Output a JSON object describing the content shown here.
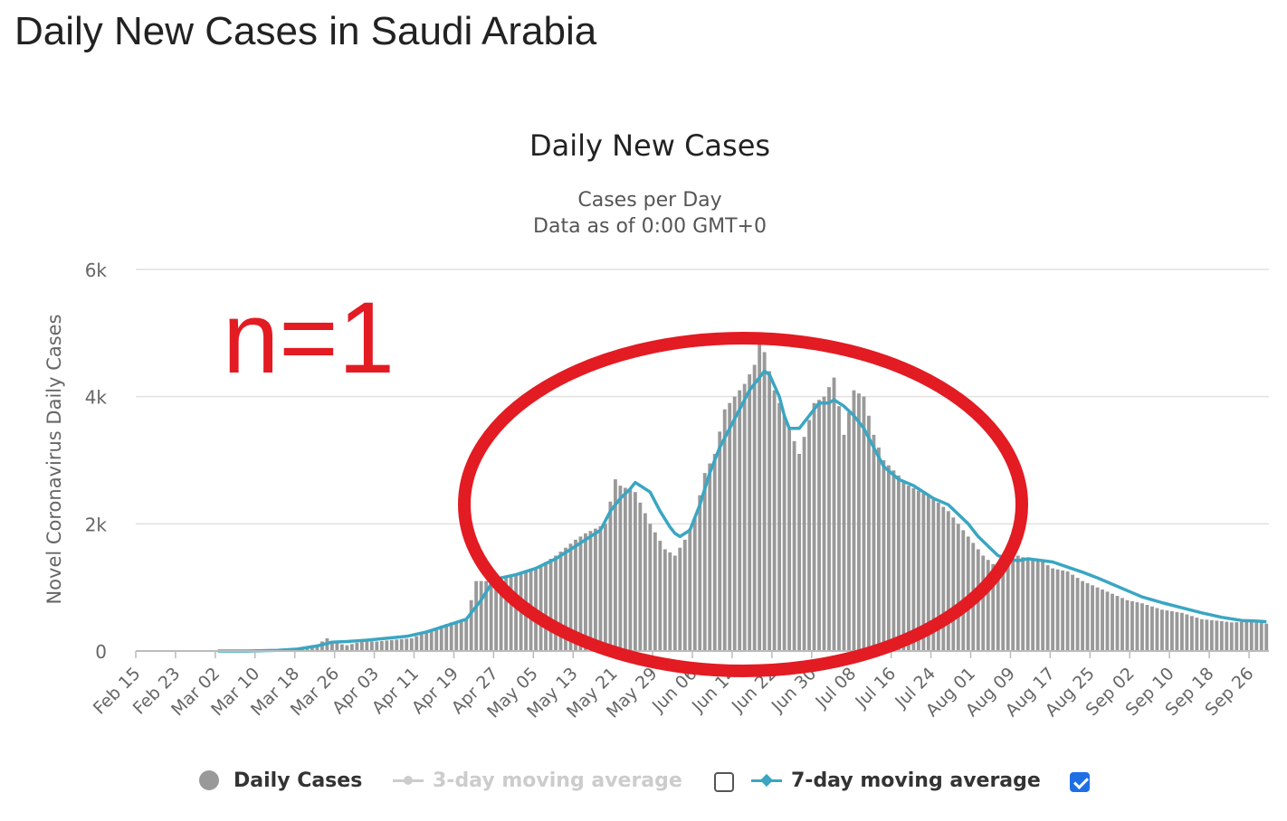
{
  "page": {
    "title": "Daily New Cases in Saudi Arabia"
  },
  "annotation": {
    "text": "n=1",
    "color": "#e31b23"
  },
  "chart_data": {
    "type": "bar",
    "title": "Daily New Cases",
    "subtitle_line1": "Cases per Day",
    "subtitle_line2": "Data as of 0:00 GMT+0",
    "ylabel": "Novel Coronavirus Daily Cases",
    "xlabel": "",
    "ylim": [
      0,
      6000
    ],
    "yticks": [
      0,
      2000,
      4000,
      6000
    ],
    "ytick_labels": [
      "0",
      "2k",
      "4k",
      "6k"
    ],
    "grid": true,
    "start_date": "Feb 15",
    "xtick_labels": [
      "Feb 15",
      "Feb 23",
      "Mar 02",
      "Mar 10",
      "Mar 18",
      "Mar 26",
      "Apr 03",
      "Apr 11",
      "Apr 19",
      "Apr 27",
      "May 05",
      "May 13",
      "May 21",
      "May 29",
      "Jun 06",
      "Jun 14",
      "Jun 22",
      "Jun 30",
      "Jul 08",
      "Jul 16",
      "Jul 24",
      "Aug 01",
      "Aug 09",
      "Aug 17",
      "Aug 25",
      "Sep 02",
      "Sep 10",
      "Sep 18",
      "Sep 26"
    ],
    "series": [
      {
        "name": "Daily Cases",
        "color": "#999999",
        "anchors": [
          [
            0,
            0
          ],
          [
            16,
            0
          ],
          [
            25,
            5
          ],
          [
            30,
            30
          ],
          [
            33,
            60
          ],
          [
            36,
            100
          ],
          [
            38,
            200
          ],
          [
            40,
            120
          ],
          [
            42,
            90
          ],
          [
            45,
            150
          ],
          [
            48,
            150
          ],
          [
            52,
            180
          ],
          [
            55,
            200
          ],
          [
            58,
            300
          ],
          [
            61,
            400
          ],
          [
            63,
            450
          ],
          [
            66,
            500
          ],
          [
            67,
            800
          ],
          [
            68,
            1100
          ],
          [
            71,
            1100
          ],
          [
            72,
            1150
          ],
          [
            75,
            1200
          ],
          [
            78,
            1250
          ],
          [
            80,
            1300
          ],
          [
            84,
            1500
          ],
          [
            88,
            1750
          ],
          [
            90,
            1850
          ],
          [
            94,
            2000
          ],
          [
            96,
            2700
          ],
          [
            97,
            2600
          ],
          [
            100,
            2500
          ],
          [
            103,
            2000
          ],
          [
            106,
            1600
          ],
          [
            108,
            1500
          ],
          [
            110,
            1750
          ],
          [
            112,
            2100
          ],
          [
            114,
            2800
          ],
          [
            116,
            3100
          ],
          [
            118,
            3800
          ],
          [
            122,
            4200
          ],
          [
            124,
            4500
          ],
          [
            125,
            4900
          ],
          [
            126,
            4700
          ],
          [
            128,
            4100
          ],
          [
            130,
            3700
          ],
          [
            133,
            3100
          ],
          [
            136,
            3900
          ],
          [
            138,
            4000
          ],
          [
            140,
            4300
          ],
          [
            142,
            3400
          ],
          [
            144,
            4100
          ],
          [
            146,
            4000
          ],
          [
            148,
            3400
          ],
          [
            150,
            3000
          ],
          [
            155,
            2600
          ],
          [
            160,
            2400
          ],
          [
            163,
            2200
          ],
          [
            165,
            2000
          ],
          [
            168,
            1700
          ],
          [
            170,
            1500
          ],
          [
            173,
            1300
          ],
          [
            175,
            1400
          ],
          [
            177,
            1500
          ],
          [
            179,
            1450
          ],
          [
            181,
            1450
          ],
          [
            184,
            1300
          ],
          [
            187,
            1250
          ],
          [
            190,
            1100
          ],
          [
            193,
            1000
          ],
          [
            196,
            900
          ],
          [
            199,
            800
          ],
          [
            202,
            750
          ],
          [
            206,
            650
          ],
          [
            210,
            600
          ],
          [
            214,
            500
          ],
          [
            218,
            470
          ],
          [
            220,
            450
          ],
          [
            224,
            460
          ],
          [
            227,
            430
          ]
        ]
      },
      {
        "name": "3-day moving average",
        "visible": false,
        "color": "#cccccc"
      },
      {
        "name": "7-day moving average",
        "visible": true,
        "color": "#3aa6c2",
        "anchors": [
          [
            16,
            0
          ],
          [
            22,
            0
          ],
          [
            28,
            10
          ],
          [
            32,
            30
          ],
          [
            36,
            80
          ],
          [
            39,
            140
          ],
          [
            42,
            150
          ],
          [
            46,
            170
          ],
          [
            50,
            200
          ],
          [
            54,
            230
          ],
          [
            58,
            300
          ],
          [
            62,
            400
          ],
          [
            66,
            500
          ],
          [
            69,
            800
          ],
          [
            71,
            1050
          ],
          [
            73,
            1150
          ],
          [
            76,
            1200
          ],
          [
            80,
            1300
          ],
          [
            84,
            1450
          ],
          [
            88,
            1650
          ],
          [
            91,
            1800
          ],
          [
            93,
            1900
          ],
          [
            95,
            2200
          ],
          [
            97,
            2400
          ],
          [
            99,
            2550
          ],
          [
            100,
            2650
          ],
          [
            101,
            2600
          ],
          [
            103,
            2500
          ],
          [
            105,
            2200
          ],
          [
            107,
            1950
          ],
          [
            108,
            1850
          ],
          [
            109,
            1800
          ],
          [
            111,
            1900
          ],
          [
            113,
            2300
          ],
          [
            115,
            2800
          ],
          [
            117,
            3200
          ],
          [
            119,
            3500
          ],
          [
            121,
            3800
          ],
          [
            123,
            4100
          ],
          [
            125,
            4300
          ],
          [
            126,
            4400
          ],
          [
            127,
            4350
          ],
          [
            129,
            4000
          ],
          [
            130,
            3700
          ],
          [
            131,
            3500
          ],
          [
            133,
            3500
          ],
          [
            135,
            3700
          ],
          [
            137,
            3900
          ],
          [
            139,
            3900
          ],
          [
            140,
            3950
          ],
          [
            142,
            3850
          ],
          [
            144,
            3700
          ],
          [
            146,
            3500
          ],
          [
            148,
            3200
          ],
          [
            150,
            2900
          ],
          [
            153,
            2700
          ],
          [
            156,
            2600
          ],
          [
            160,
            2400
          ],
          [
            163,
            2300
          ],
          [
            165,
            2150
          ],
          [
            167,
            2000
          ],
          [
            169,
            1800
          ],
          [
            171,
            1650
          ],
          [
            173,
            1500
          ],
          [
            175,
            1450
          ],
          [
            177,
            1420
          ],
          [
            179,
            1450
          ],
          [
            181,
            1430
          ],
          [
            184,
            1400
          ],
          [
            187,
            1320
          ],
          [
            190,
            1240
          ],
          [
            193,
            1150
          ],
          [
            196,
            1050
          ],
          [
            199,
            950
          ],
          [
            202,
            850
          ],
          [
            206,
            760
          ],
          [
            210,
            680
          ],
          [
            214,
            600
          ],
          [
            218,
            530
          ],
          [
            222,
            480
          ],
          [
            225,
            470
          ],
          [
            227,
            460
          ]
        ]
      }
    ],
    "legend_position": "bottom"
  },
  "legend": {
    "daily_label": "Daily Cases",
    "ma3_label": "3-day moving average",
    "ma7_label": "7-day moving average",
    "ma3_checked": false,
    "ma7_checked": true
  }
}
